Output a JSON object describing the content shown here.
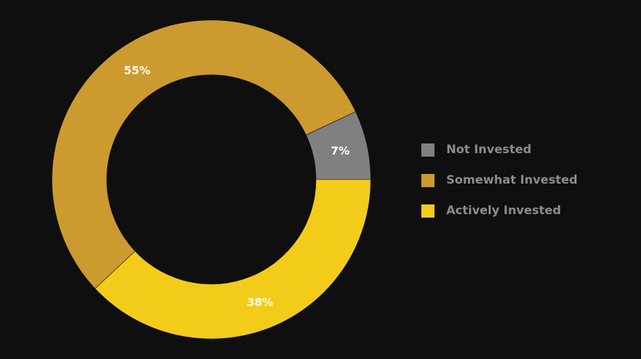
{
  "chart_data": {
    "type": "pie",
    "variant": "donut",
    "categories": [
      "Not Invested",
      "Somewhat Invested",
      "Actively Invested"
    ],
    "values": [
      7,
      55,
      38
    ],
    "labels": [
      "7%",
      "55%",
      "38%"
    ],
    "colors": [
      "#808080",
      "#cc9a2f",
      "#f2cc19"
    ],
    "legend_position": "right",
    "title": "",
    "background": "#0f0f0f"
  }
}
